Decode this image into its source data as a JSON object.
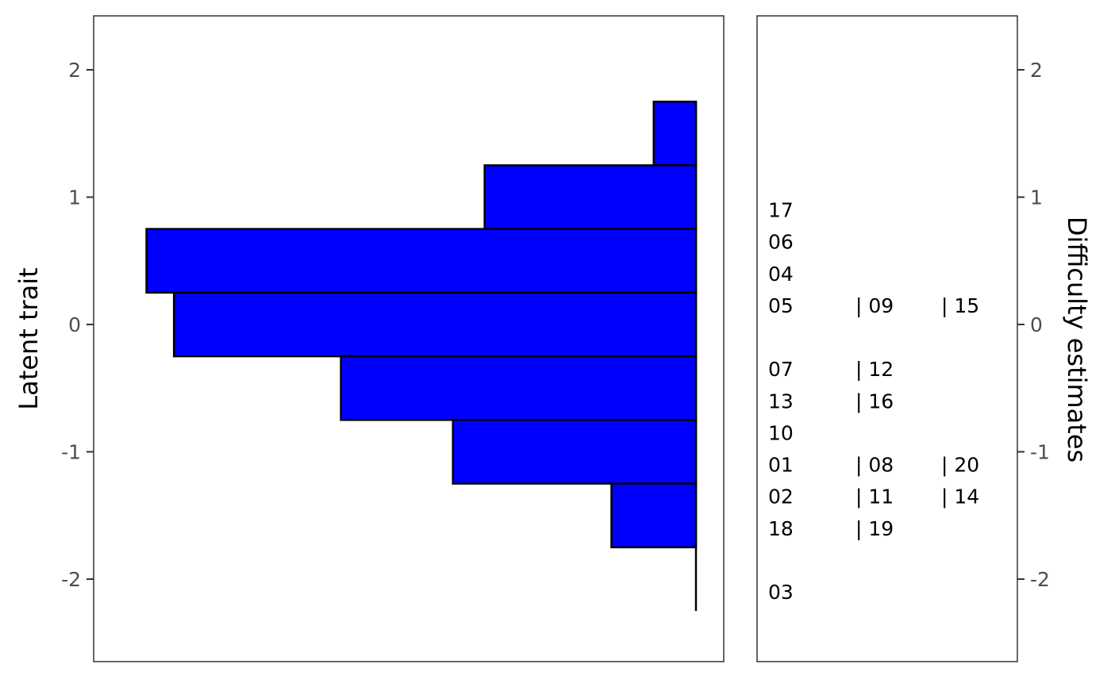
{
  "chart_data": {
    "type": "bar",
    "orientation": "horizontal",
    "grid": false,
    "colors": {
      "bar_fill": "#0000ff",
      "bar_stroke": "#000000",
      "panel_border": "#333333",
      "tick_text": "#4d4d4d"
    },
    "left_axis": {
      "title": "Latent trait",
      "ylim": [
        -2.6,
        2.4
      ],
      "ticks": [
        2,
        1,
        0,
        -1,
        -2
      ],
      "tick_labels": [
        "2",
        "1",
        "0",
        "-1",
        "-2"
      ]
    },
    "right_axis": {
      "title": "Difficulty estimates",
      "ylim": [
        -2.6,
        2.4
      ],
      "ticks": [
        2,
        1,
        0,
        -1,
        -2
      ],
      "tick_labels": [
        "2",
        "1",
        "0",
        "-1",
        "-2"
      ]
    },
    "histogram": {
      "bins": [
        {
          "lo": 1.25,
          "hi": 1.75,
          "count": 2
        },
        {
          "lo": 0.75,
          "hi": 1.25,
          "count": 10
        },
        {
          "lo": 0.25,
          "hi": 0.75,
          "count": 26
        },
        {
          "lo": -0.25,
          "hi": 0.25,
          "count": 24.7
        },
        {
          "lo": -0.75,
          "hi": -0.25,
          "count": 16.8
        },
        {
          "lo": -1.25,
          "hi": -0.75,
          "count": 11.5
        },
        {
          "lo": -1.75,
          "hi": -1.25,
          "count": 4
        },
        {
          "lo": -2.25,
          "hi": -1.75,
          "count": 0
        }
      ],
      "xmax": 28.5
    },
    "items": [
      {
        "y": 0.9,
        "labels": [
          "17"
        ]
      },
      {
        "y": 0.65,
        "labels": [
          "06"
        ]
      },
      {
        "y": 0.4,
        "labels": [
          "04"
        ]
      },
      {
        "y": 0.15,
        "labels": [
          "05",
          "| 09",
          "| 15"
        ]
      },
      {
        "y": -0.35,
        "labels": [
          "07",
          "| 12"
        ]
      },
      {
        "y": -0.6,
        "labels": [
          "13",
          "| 16"
        ]
      },
      {
        "y": -0.85,
        "labels": [
          "10"
        ]
      },
      {
        "y": -1.1,
        "labels": [
          "01",
          "| 08",
          "| 20"
        ]
      },
      {
        "y": -1.35,
        "labels": [
          "02",
          "| 11",
          "| 14"
        ]
      },
      {
        "y": -1.6,
        "labels": [
          "18",
          "| 19"
        ]
      },
      {
        "y": -2.1,
        "labels": [
          "03"
        ]
      }
    ]
  }
}
